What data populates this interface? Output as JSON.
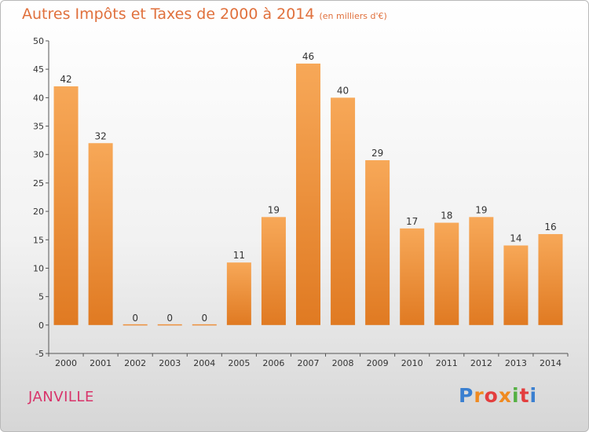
{
  "header": {
    "title": "Autres Impôts et Taxes de 2000 à 2014",
    "unit": "(en milliers d'€)"
  },
  "footer": {
    "city": "JANVILLE",
    "logo": "Proxiti"
  },
  "colors": {
    "bar_light": "#f7a858",
    "bar_dark": "#e07a22",
    "title": "#e0703c",
    "city": "#d8346a"
  },
  "chart_data": {
    "type": "bar",
    "title": "Autres Impôts et Taxes de 2000 à 2014",
    "subtitle": "(en milliers d'€)",
    "xlabel": "",
    "ylabel": "",
    "categories": [
      "2000",
      "2001",
      "2002",
      "2003",
      "2004",
      "2005",
      "2006",
      "2007",
      "2008",
      "2009",
      "2010",
      "2011",
      "2012",
      "2013",
      "2014"
    ],
    "values": [
      42,
      32,
      0,
      0,
      0,
      11,
      19,
      46,
      40,
      29,
      17,
      18,
      19,
      14,
      16
    ],
    "ylim": [
      -5,
      50
    ],
    "yticks": [
      -5,
      0,
      5,
      10,
      15,
      20,
      25,
      30,
      35,
      40,
      45,
      50
    ],
    "grid": false,
    "legend": "none"
  }
}
